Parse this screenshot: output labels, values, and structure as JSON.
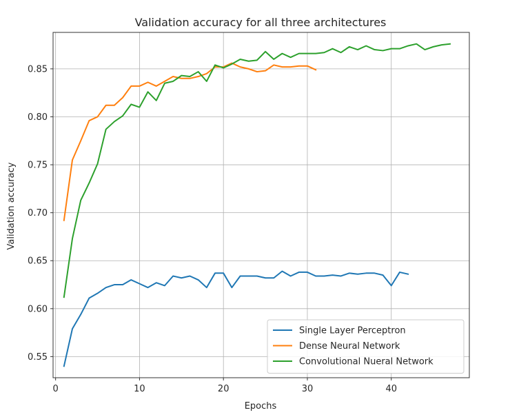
{
  "chart_data": {
    "type": "line",
    "title": "Validation accuracy for all three architectures",
    "xlabel": "Epochs",
    "ylabel": "Validation accuracy",
    "xlim": [
      -0.3,
      49.3
    ],
    "ylim": [
      0.528,
      0.888
    ],
    "xticks": [
      0,
      10,
      20,
      30,
      40
    ],
    "yticks": [
      0.55,
      0.6,
      0.65,
      0.7,
      0.75,
      0.8,
      0.85
    ],
    "grid": true,
    "legend_position": "lower-right",
    "series": [
      {
        "name": "Single Layer Perceptron",
        "color": "#1f77b4",
        "x": [
          1,
          2,
          3,
          4,
          5,
          6,
          7,
          8,
          9,
          10,
          11,
          12,
          13,
          14,
          15,
          16,
          17,
          18,
          19,
          20,
          21,
          22,
          23,
          24,
          25,
          26,
          27,
          28,
          29,
          30,
          31,
          32,
          33,
          34,
          35,
          36,
          37,
          38,
          39,
          40,
          41,
          42
        ],
        "values": [
          0.54,
          0.579,
          0.594,
          0.611,
          0.616,
          0.622,
          0.625,
          0.625,
          0.63,
          0.626,
          0.622,
          0.627,
          0.624,
          0.634,
          0.632,
          0.634,
          0.63,
          0.622,
          0.637,
          0.637,
          0.622,
          0.634,
          0.634,
          0.634,
          0.632,
          0.632,
          0.639,
          0.634,
          0.638,
          0.638,
          0.634,
          0.634,
          0.635,
          0.634,
          0.637,
          0.636,
          0.637,
          0.637,
          0.635,
          0.624,
          0.638,
          0.636
        ]
      },
      {
        "name": "Dense Neural Network",
        "color": "#ff7f0e",
        "x": [
          1,
          2,
          3,
          4,
          5,
          6,
          7,
          8,
          9,
          10,
          11,
          12,
          13,
          14,
          15,
          16,
          17,
          18,
          19,
          20,
          21,
          22,
          23,
          24,
          25,
          26,
          27,
          28,
          29,
          30,
          31
        ],
        "values": [
          0.692,
          0.755,
          0.775,
          0.796,
          0.8,
          0.812,
          0.812,
          0.82,
          0.832,
          0.832,
          0.836,
          0.832,
          0.837,
          0.842,
          0.84,
          0.84,
          0.842,
          0.845,
          0.852,
          0.852,
          0.856,
          0.852,
          0.85,
          0.847,
          0.848,
          0.854,
          0.852,
          0.852,
          0.853,
          0.853,
          0.849
        ]
      },
      {
        "name": "Convolutional Nueral Network",
        "color": "#2ca02c",
        "x": [
          1,
          2,
          3,
          4,
          5,
          6,
          7,
          8,
          9,
          10,
          11,
          12,
          13,
          14,
          15,
          16,
          17,
          18,
          19,
          20,
          21,
          22,
          23,
          24,
          25,
          26,
          27,
          28,
          29,
          30,
          31,
          32,
          33,
          34,
          35,
          36,
          37,
          38,
          39,
          40,
          41,
          42,
          43,
          44,
          45,
          46,
          47
        ],
        "values": [
          0.612,
          0.673,
          0.713,
          0.731,
          0.751,
          0.787,
          0.795,
          0.801,
          0.813,
          0.81,
          0.826,
          0.817,
          0.835,
          0.837,
          0.843,
          0.842,
          0.847,
          0.837,
          0.854,
          0.851,
          0.855,
          0.86,
          0.858,
          0.859,
          0.868,
          0.86,
          0.866,
          0.862,
          0.866,
          0.866,
          0.866,
          0.867,
          0.871,
          0.867,
          0.873,
          0.87,
          0.874,
          0.87,
          0.869,
          0.871,
          0.871,
          0.874,
          0.876,
          0.87,
          0.873,
          0.875,
          0.876
        ]
      }
    ]
  }
}
